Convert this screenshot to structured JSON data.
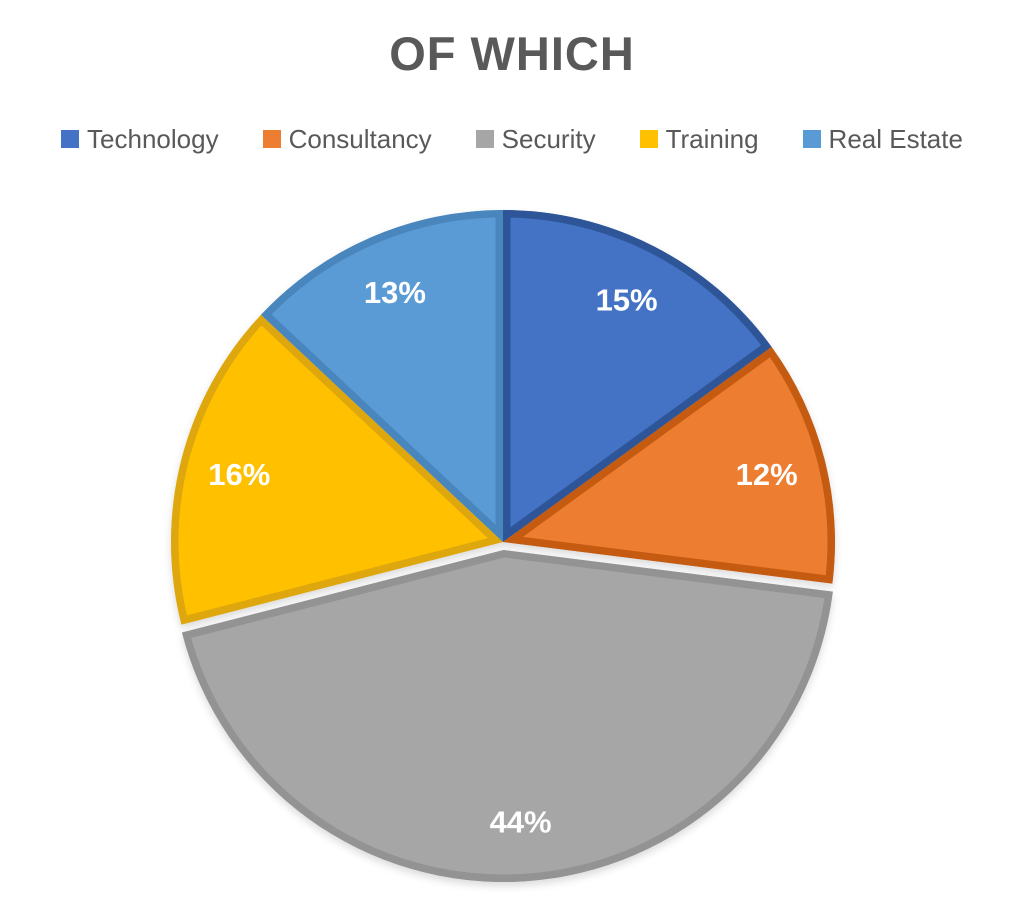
{
  "chart_data": {
    "type": "pie",
    "title": "OF WHICH",
    "legend_position": "top",
    "start_angle_deg": 0,
    "direction": "clockwise",
    "slices": [
      {
        "label": "Technology",
        "value": 15,
        "display": "15%",
        "color": "#4472C4",
        "border_color": "#2E5597",
        "exploded": false
      },
      {
        "label": "Consultancy",
        "value": 12,
        "display": "12%",
        "color": "#ED7D31",
        "border_color": "#C55A11",
        "exploded": false
      },
      {
        "label": "Security",
        "value": 44,
        "display": "44%",
        "color": "#A6A6A6",
        "border_color": "#939393",
        "exploded": true
      },
      {
        "label": "Training",
        "value": 16,
        "display": "16%",
        "color": "#FFC000",
        "border_color": "#DFA70E",
        "exploded": false
      },
      {
        "label": "Real Estate",
        "value": 13,
        "display": "13%",
        "color": "#5B9BD5",
        "border_color": "#4A86BE",
        "exploded": false
      }
    ],
    "colors": {
      "background": "#FFFFFF",
      "title_color": "#595959",
      "legend_text_color": "#595959",
      "slice_label_color": "#FFFFFF"
    }
  }
}
